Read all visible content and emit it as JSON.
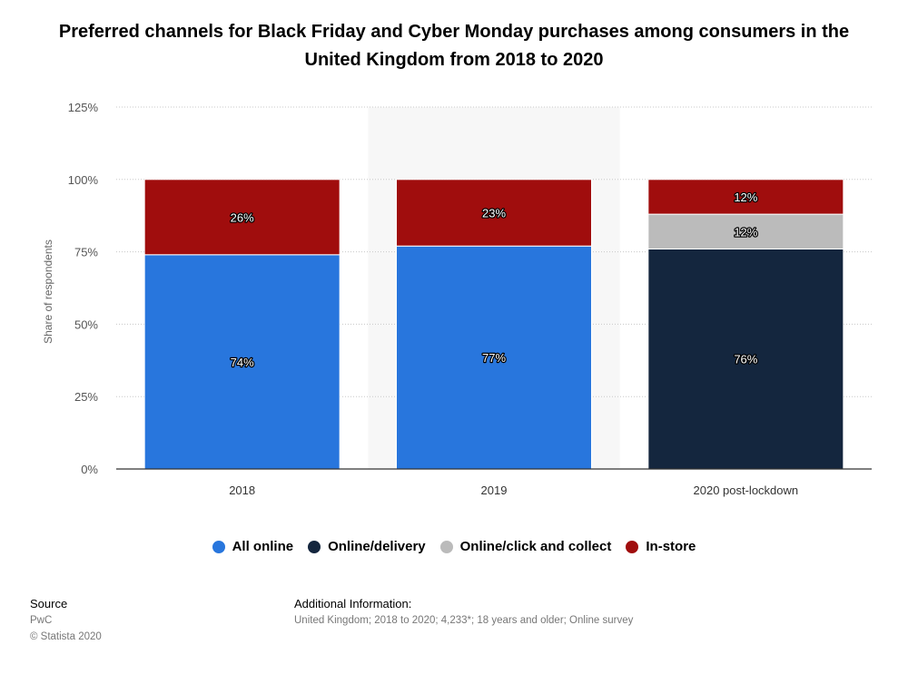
{
  "chart_data": {
    "type": "bar",
    "stacked": true,
    "title": "Preferred channels for Black Friday and Cyber Monday purchases among consumers in the United Kingdom from 2018 to 2020",
    "ylabel": "Share of respondents",
    "xlabel": "",
    "ylim": [
      0,
      125
    ],
    "yticks": [
      "0%",
      "25%",
      "50%",
      "75%",
      "100%",
      "125%"
    ],
    "categories": [
      "2018",
      "2019",
      "2020 post-lockdown"
    ],
    "series": [
      {
        "name": "All online",
        "color": "#2876dd",
        "values": [
          74,
          77,
          null
        ],
        "labels": [
          "74%",
          "77%",
          ""
        ]
      },
      {
        "name": "Online/delivery",
        "color": "#14263e",
        "values": [
          null,
          null,
          76
        ],
        "labels": [
          "",
          "",
          "76%"
        ]
      },
      {
        "name": "Online/click and collect",
        "color": "#bbbbbb",
        "values": [
          null,
          null,
          12
        ],
        "labels": [
          "",
          "",
          "12%"
        ]
      },
      {
        "name": "In-store",
        "color": "#a00d0d",
        "values": [
          26,
          23,
          12
        ],
        "labels": [
          "26%",
          "23%",
          "12%"
        ]
      }
    ],
    "grid": true,
    "legend_position": "bottom",
    "highlighted_category": "2019"
  },
  "footer": {
    "source_heading": "Source",
    "source_lines": [
      "PwC",
      "© Statista 2020"
    ],
    "info_heading": "Additional Information:",
    "info_text": "United Kingdom; 2018 to 2020; 4,233*; 18 years and older; Online survey"
  }
}
